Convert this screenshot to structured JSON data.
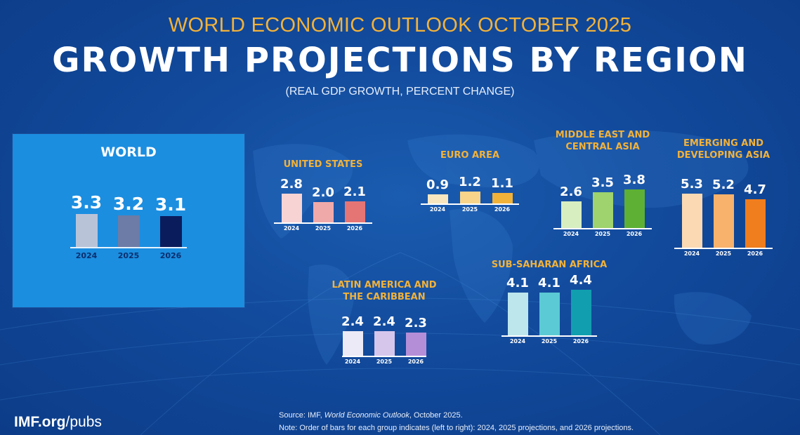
{
  "header": {
    "kicker": "WORLD ECONOMIC OUTLOOK OCTOBER 2025",
    "title": "GROWTH PROJECTIONS BY REGION",
    "subtitle": "(REAL GDP GROWTH, PERCENT CHANGE)"
  },
  "footer": {
    "logo_bold": "IMF.org",
    "logo_rest": "/pubs",
    "source_prefix": "Source:  IMF, ",
    "source_title": "World Economic Outlook",
    "source_suffix": ", October 2025.",
    "note": "Note:  Order of bars for each group indicates (left to right): 2024, 2025 projections, and 2026 projections."
  },
  "chart_data": {
    "type": "bar",
    "title": "GROWTH PROJECTIONS BY REGION",
    "subtitle": "(REAL GDP GROWTH, PERCENT CHANGE)",
    "categories": [
      "2024",
      "2025",
      "2026"
    ],
    "unit": "percent change",
    "groups": [
      {
        "id": "world",
        "title": [
          "WORLD"
        ],
        "values": [
          3.3,
          3.2,
          3.1
        ],
        "labels": [
          "3.3",
          "3.2",
          "3.1"
        ],
        "colors": [
          "#b9c3d8",
          "#6c7ca6",
          "#0b1c5c"
        ]
      },
      {
        "id": "us",
        "title": [
          "UNITED STATES"
        ],
        "values": [
          2.8,
          2.0,
          2.1
        ],
        "labels": [
          "2.8",
          "2.0",
          "2.1"
        ],
        "colors": [
          "#f7d3d3",
          "#f0a9a9",
          "#e57575"
        ]
      },
      {
        "id": "euro",
        "title": [
          "EURO AREA"
        ],
        "values": [
          0.9,
          1.2,
          1.1
        ],
        "labels": [
          "0.9",
          "1.2",
          "1.1"
        ],
        "colors": [
          "#f9e6bf",
          "#f7d48a",
          "#f1b23a"
        ]
      },
      {
        "id": "mecasia",
        "title": [
          "MIDDLE EAST AND",
          "CENTRAL ASIA"
        ],
        "values": [
          2.6,
          3.5,
          3.8
        ],
        "labels": [
          "2.6",
          "3.5",
          "3.8"
        ],
        "colors": [
          "#d7eec0",
          "#9ed36d",
          "#5db034"
        ]
      },
      {
        "id": "edasia",
        "title": [
          "EMERGING AND",
          "DEVELOPING ASIA"
        ],
        "values": [
          5.3,
          5.2,
          4.7
        ],
        "labels": [
          "5.3",
          "5.2",
          "4.7"
        ],
        "colors": [
          "#fbd9b3",
          "#f8b26b",
          "#f07d1e"
        ]
      },
      {
        "id": "latam",
        "title": [
          "LATIN AMERICA AND",
          "THE CARIBBEAN"
        ],
        "values": [
          2.4,
          2.4,
          2.3
        ],
        "labels": [
          "2.4",
          "2.4",
          "2.3"
        ],
        "colors": [
          "#eceaf6",
          "#d6c6ec",
          "#b58ed8"
        ]
      },
      {
        "id": "ssa",
        "title": [
          "SUB-SAHARAN AFRICA"
        ],
        "values": [
          4.1,
          4.1,
          4.4
        ],
        "labels": [
          "4.1",
          "4.1",
          "4.4"
        ],
        "colors": [
          "#bde6ec",
          "#5ccad4",
          "#119faf"
        ]
      }
    ]
  }
}
